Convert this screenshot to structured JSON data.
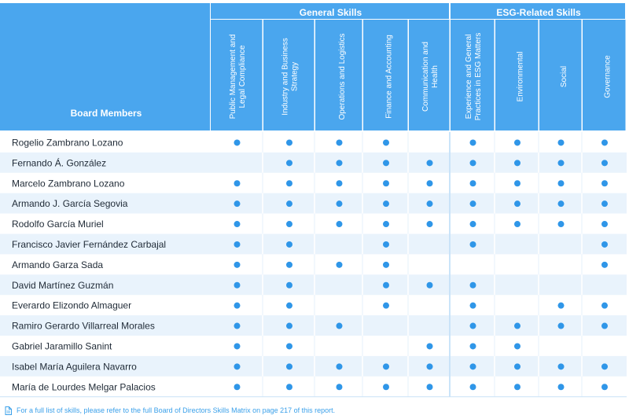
{
  "colors": {
    "header_bg": "#4aa6ee",
    "band": "#e9f3fc",
    "dot": "#2f96e8",
    "divider": "#ffffff",
    "text": "#1f2a36",
    "footnote": "#3aa0ea"
  },
  "table": {
    "board_members_label": "Board Members",
    "groups": [
      {
        "label": "General Skills",
        "columns": [
          0,
          1,
          2,
          3,
          4
        ]
      },
      {
        "label": "ESG-Related Skills",
        "columns": [
          5,
          6,
          7,
          8
        ]
      }
    ],
    "columns": [
      [
        "Public Management and",
        "Legal Compliance"
      ],
      [
        "Industry and Business",
        "Strategy"
      ],
      [
        "Operations and Logistics"
      ],
      [
        "Finance and Accounting"
      ],
      [
        "Communication and",
        "Health"
      ],
      [
        "Experience and General",
        "Practices in ESG Matters"
      ],
      [
        "Environmental"
      ],
      [
        "Social"
      ],
      [
        "Governance"
      ]
    ],
    "rows": [
      {
        "name": "Rogelio Zambrano Lozano",
        "skills": [
          1,
          1,
          1,
          1,
          0,
          1,
          1,
          1,
          1
        ]
      },
      {
        "name": "Fernando Á. González",
        "skills": [
          0,
          1,
          1,
          1,
          1,
          1,
          1,
          1,
          1
        ]
      },
      {
        "name": "Marcelo Zambrano Lozano",
        "skills": [
          1,
          1,
          1,
          1,
          1,
          1,
          1,
          1,
          1
        ]
      },
      {
        "name": "Armando J. García Segovia",
        "skills": [
          1,
          1,
          1,
          1,
          1,
          1,
          1,
          1,
          1
        ]
      },
      {
        "name": "Rodolfo García Muriel",
        "skills": [
          1,
          1,
          1,
          1,
          1,
          1,
          1,
          1,
          1
        ]
      },
      {
        "name": "Francisco Javier Fernández Carbajal",
        "skills": [
          1,
          1,
          0,
          1,
          0,
          1,
          0,
          0,
          1
        ]
      },
      {
        "name": "Armando Garza Sada",
        "skills": [
          1,
          1,
          1,
          1,
          0,
          0,
          0,
          0,
          1
        ]
      },
      {
        "name": "David Martínez Guzmán",
        "skills": [
          1,
          1,
          0,
          1,
          1,
          1,
          0,
          0,
          0
        ]
      },
      {
        "name": "Everardo Elizondo Almaguer",
        "skills": [
          1,
          1,
          0,
          1,
          0,
          1,
          0,
          1,
          1
        ]
      },
      {
        "name": "Ramiro Gerardo Villarreal Morales",
        "skills": [
          1,
          1,
          1,
          0,
          0,
          1,
          1,
          1,
          1
        ]
      },
      {
        "name": "Gabriel Jaramillo Sanint",
        "skills": [
          1,
          1,
          0,
          0,
          1,
          1,
          1,
          0,
          0
        ]
      },
      {
        "name": "Isabel María Aguilera Navarro",
        "skills": [
          1,
          1,
          1,
          1,
          1,
          1,
          1,
          1,
          1
        ]
      },
      {
        "name": "María de Lourdes Melgar Palacios",
        "skills": [
          1,
          1,
          1,
          1,
          1,
          1,
          1,
          1,
          1
        ]
      }
    ]
  },
  "footnote": {
    "icon": "document-icon",
    "text": "For a full list of skills, please refer to the full Board of Directors Skills Matrix on page 217 of this report."
  }
}
